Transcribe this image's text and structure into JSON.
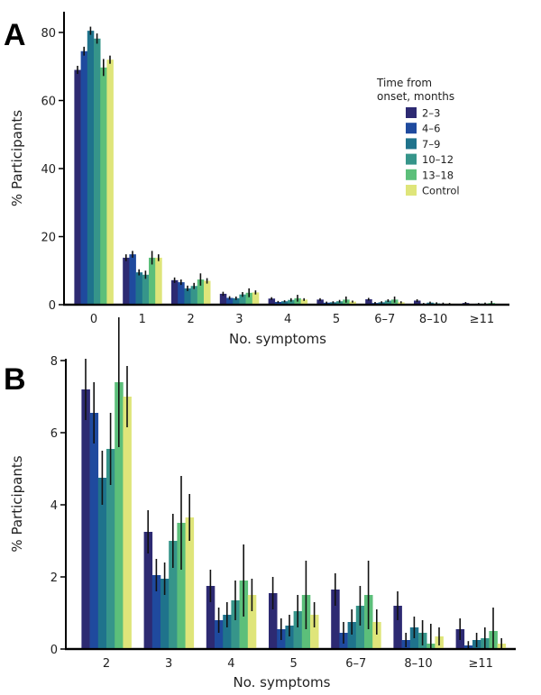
{
  "figure": {
    "legend_title_line1": "Time from",
    "legend_title_line2": "onset, months"
  },
  "chart_data": [
    {
      "panel": "A",
      "type": "bar",
      "title": "",
      "xlabel": "No. symptoms",
      "ylabel": "% Participants",
      "ylim": [
        0,
        85
      ],
      "yticks": [
        0,
        20,
        40,
        60,
        80
      ],
      "grid": false,
      "legend_placement": "top-right",
      "categories": [
        "0",
        "1",
        "2",
        "3",
        "4",
        "5",
        "6–7",
        "8–10",
        "≥11"
      ],
      "series": [
        {
          "name": "2–3",
          "color": "#2d2a72",
          "values": [
            69.0,
            13.8,
            7.2,
            3.2,
            1.8,
            1.5,
            1.6,
            1.2,
            0.5
          ],
          "error": [
            1.2,
            1.0,
            0.8,
            0.6,
            0.4,
            0.4,
            0.4,
            0.4,
            0.3
          ]
        },
        {
          "name": "4–6",
          "color": "#1f4a9e",
          "values": [
            74.5,
            14.8,
            6.6,
            2.0,
            0.8,
            0.6,
            0.5,
            0.3,
            0.1
          ],
          "error": [
            1.3,
            1.0,
            0.8,
            0.5,
            0.3,
            0.3,
            0.3,
            0.2,
            0.1
          ]
        },
        {
          "name": "7–9",
          "color": "#1f738c",
          "values": [
            80.5,
            9.5,
            4.8,
            1.9,
            1.0,
            0.7,
            0.7,
            0.6,
            0.3
          ],
          "error": [
            1.2,
            0.9,
            0.8,
            0.5,
            0.3,
            0.3,
            0.3,
            0.3,
            0.2
          ]
        },
        {
          "name": "10–12",
          "color": "#36958a",
          "values": [
            78.2,
            8.8,
            5.5,
            3.0,
            1.4,
            1.0,
            1.2,
            0.4,
            0.3
          ],
          "error": [
            1.5,
            1.2,
            0.9,
            0.7,
            0.5,
            0.4,
            0.4,
            0.3,
            0.3
          ]
        },
        {
          "name": "13–18",
          "color": "#5cbf7a",
          "values": [
            69.7,
            13.8,
            7.4,
            3.5,
            1.9,
            1.5,
            1.5,
            0.2,
            0.5
          ],
          "error": [
            2.5,
            2.0,
            1.8,
            1.3,
            1.0,
            0.9,
            0.9,
            0.4,
            0.6
          ]
        },
        {
          "name": "Control",
          "color": "#dfe57a",
          "values": [
            72.0,
            13.8,
            7.0,
            3.6,
            1.5,
            0.9,
            0.7,
            0.3,
            0.15
          ],
          "error": [
            1.2,
            1.0,
            0.8,
            0.6,
            0.4,
            0.3,
            0.3,
            0.2,
            0.1
          ]
        }
      ]
    },
    {
      "panel": "B",
      "type": "bar",
      "title": "",
      "xlabel": "No. symptoms",
      "ylabel": "% Participants",
      "ylim": [
        0,
        9.6
      ],
      "yticks": [
        0,
        2,
        4,
        6,
        8
      ],
      "grid": false,
      "legend_placement": "none",
      "categories": [
        "2",
        "3",
        "4",
        "5",
        "6–7",
        "8–10",
        "≥11"
      ],
      "series": [
        {
          "name": "2–3",
          "color": "#2d2a72",
          "values": [
            7.2,
            3.25,
            1.75,
            1.55,
            1.65,
            1.2,
            0.55
          ],
          "error": [
            0.85,
            0.6,
            0.45,
            0.45,
            0.45,
            0.4,
            0.3
          ]
        },
        {
          "name": "4–6",
          "color": "#1f4a9e",
          "values": [
            6.55,
            2.05,
            0.8,
            0.55,
            0.45,
            0.25,
            0.1
          ],
          "error": [
            0.85,
            0.45,
            0.35,
            0.3,
            0.3,
            0.2,
            0.12
          ]
        },
        {
          "name": "7–9",
          "color": "#1f738c",
          "values": [
            4.75,
            1.95,
            0.95,
            0.65,
            0.75,
            0.6,
            0.25
          ],
          "error": [
            0.75,
            0.45,
            0.35,
            0.3,
            0.35,
            0.3,
            0.2
          ]
        },
        {
          "name": "10–12",
          "color": "#36958a",
          "values": [
            5.55,
            3.0,
            1.35,
            1.05,
            1.2,
            0.45,
            0.3
          ],
          "error": [
            1.0,
            0.75,
            0.55,
            0.45,
            0.55,
            0.35,
            0.3
          ]
        },
        {
          "name": "13–18",
          "color": "#5cbf7a",
          "values": [
            7.4,
            3.5,
            1.9,
            1.5,
            1.5,
            0.15,
            0.5
          ],
          "error": [
            1.8,
            1.3,
            1.0,
            0.95,
            0.95,
            0.55,
            0.65
          ]
        },
        {
          "name": "Control",
          "color": "#dfe57a",
          "values": [
            7.0,
            3.65,
            1.5,
            0.95,
            0.75,
            0.35,
            0.15
          ],
          "error": [
            0.85,
            0.65,
            0.45,
            0.35,
            0.35,
            0.25,
            0.15
          ]
        }
      ]
    }
  ]
}
